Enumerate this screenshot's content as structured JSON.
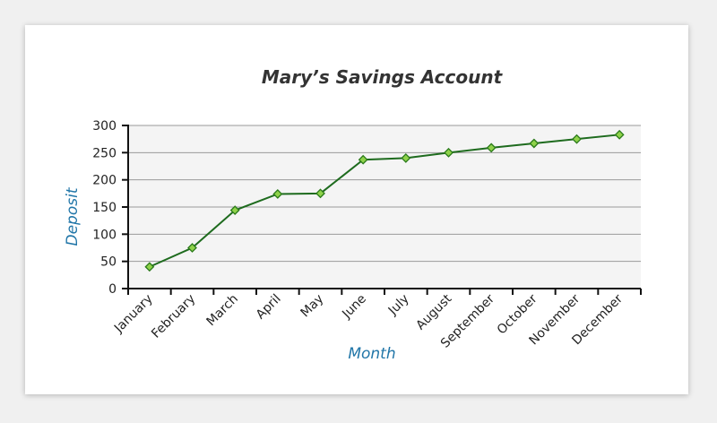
{
  "chart_data": {
    "type": "line",
    "title": "Mary’s Savings Account",
    "xlabel": "Month",
    "ylabel": "Deposit",
    "categories": [
      "January",
      "February",
      "March",
      "April",
      "May",
      "June",
      "July",
      "August",
      "September",
      "October",
      "November",
      "December"
    ],
    "series": [
      {
        "values": [
          40,
          75,
          144,
          174,
          175,
          237,
          240,
          250,
          259,
          267,
          275,
          283
        ]
      }
    ],
    "ylim": [
      0,
      300
    ],
    "yticks": [
      0,
      50,
      100,
      150,
      200,
      250,
      300
    ],
    "grid": true,
    "colors": {
      "line": "#1e6b1e",
      "marker_fill": "#8fd24a",
      "marker_stroke": "#2a7a1a",
      "plot_bg": "#f4f4f4",
      "axis_title": "#2176a8"
    }
  }
}
